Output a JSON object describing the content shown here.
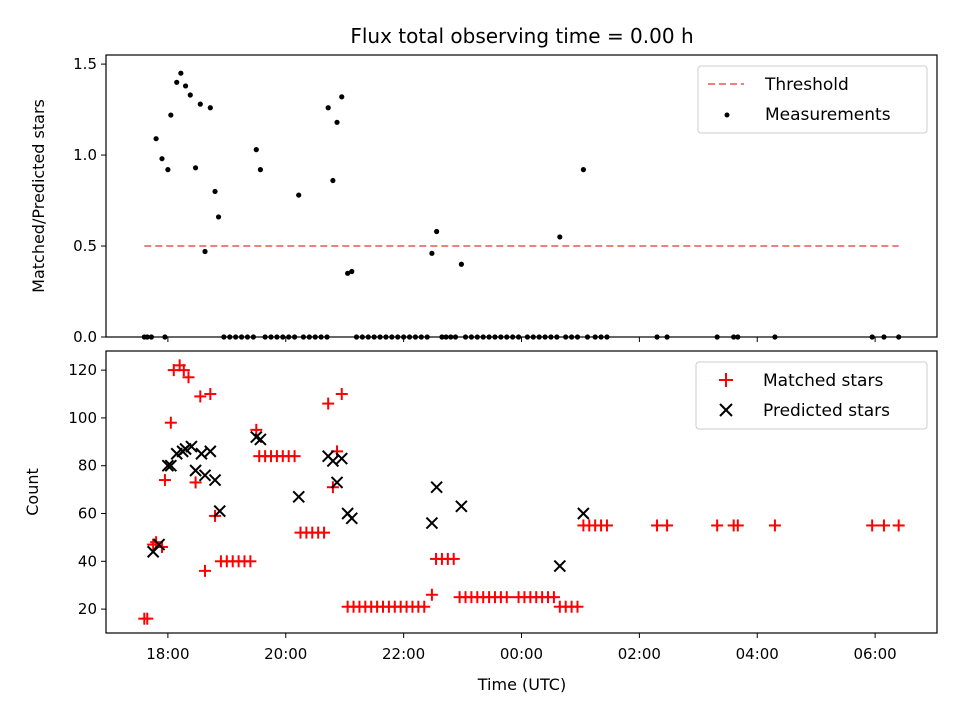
{
  "chart_data": [
    {
      "type": "scatter",
      "title": "Flux total observing time = 0.00 h",
      "xlabel": "",
      "ylabel": "Matched/Predicted stars",
      "ylim": [
        0,
        1.55
      ],
      "y_ticks": [
        "0.0",
        "0.5",
        "1.0",
        "1.5"
      ],
      "x_range_hours": [
        16.95,
        31.05
      ],
      "legend": {
        "placement": "top-right",
        "entries": [
          "Threshold",
          "Measurements"
        ]
      },
      "threshold": {
        "name": "Threshold",
        "value": 0.5,
        "x_start": 17.6,
        "x_end": 30.4,
        "color": "#f08080",
        "style": "dashed"
      },
      "series": [
        {
          "name": "Measurements",
          "color": "#000000",
          "points": [
            [
              17.6,
              0.0
            ],
            [
              17.65,
              0.0
            ],
            [
              17.72,
              0.0
            ],
            [
              17.95,
              0.0
            ],
            [
              17.8,
              1.09
            ],
            [
              17.9,
              0.98
            ],
            [
              18.0,
              0.92
            ],
            [
              18.05,
              1.22
            ],
            [
              18.15,
              1.4
            ],
            [
              18.22,
              1.45
            ],
            [
              18.3,
              1.38
            ],
            [
              18.38,
              1.33
            ],
            [
              18.47,
              0.93
            ],
            [
              18.55,
              1.28
            ],
            [
              18.63,
              0.47
            ],
            [
              18.72,
              1.26
            ],
            [
              18.8,
              0.8
            ],
            [
              18.86,
              0.66
            ],
            [
              18.95,
              0.0
            ],
            [
              19.05,
              0.0
            ],
            [
              19.15,
              0.0
            ],
            [
              19.25,
              0.0
            ],
            [
              19.35,
              0.0
            ],
            [
              19.45,
              0.0
            ],
            [
              19.5,
              1.03
            ],
            [
              19.57,
              0.92
            ],
            [
              19.65,
              0.0
            ],
            [
              19.75,
              0.0
            ],
            [
              19.85,
              0.0
            ],
            [
              19.95,
              0.0
            ],
            [
              20.05,
              0.0
            ],
            [
              20.15,
              0.0
            ],
            [
              20.22,
              0.78
            ],
            [
              20.3,
              0.0
            ],
            [
              20.4,
              0.0
            ],
            [
              20.5,
              0.0
            ],
            [
              20.6,
              0.0
            ],
            [
              20.7,
              0.0
            ],
            [
              20.72,
              1.26
            ],
            [
              20.8,
              0.86
            ],
            [
              20.87,
              1.18
            ],
            [
              20.95,
              1.32
            ],
            [
              21.05,
              0.35
            ],
            [
              21.12,
              0.36
            ],
            [
              21.2,
              0.0
            ],
            [
              21.3,
              0.0
            ],
            [
              21.4,
              0.0
            ],
            [
              21.5,
              0.0
            ],
            [
              21.6,
              0.0
            ],
            [
              21.7,
              0.0
            ],
            [
              21.8,
              0.0
            ],
            [
              21.9,
              0.0
            ],
            [
              22.0,
              0.0
            ],
            [
              22.1,
              0.0
            ],
            [
              22.2,
              0.0
            ],
            [
              22.3,
              0.0
            ],
            [
              22.4,
              0.0
            ],
            [
              22.48,
              0.46
            ],
            [
              22.56,
              0.58
            ],
            [
              22.65,
              0.0
            ],
            [
              22.72,
              0.0
            ],
            [
              22.8,
              0.0
            ],
            [
              22.88,
              0.0
            ],
            [
              22.98,
              0.4
            ],
            [
              23.05,
              0.0
            ],
            [
              23.15,
              0.0
            ],
            [
              23.25,
              0.0
            ],
            [
              23.35,
              0.0
            ],
            [
              23.45,
              0.0
            ],
            [
              23.55,
              0.0
            ],
            [
              23.65,
              0.0
            ],
            [
              23.75,
              0.0
            ],
            [
              23.85,
              0.0
            ],
            [
              23.95,
              0.0
            ],
            [
              24.1,
              0.0
            ],
            [
              24.2,
              0.0
            ],
            [
              24.3,
              0.0
            ],
            [
              24.4,
              0.0
            ],
            [
              24.5,
              0.0
            ],
            [
              24.6,
              0.0
            ],
            [
              24.65,
              0.55
            ],
            [
              24.75,
              0.0
            ],
            [
              24.85,
              0.0
            ],
            [
              24.95,
              0.0
            ],
            [
              25.05,
              0.92
            ],
            [
              25.12,
              0.0
            ],
            [
              25.25,
              0.0
            ],
            [
              25.35,
              0.0
            ],
            [
              25.45,
              0.0
            ],
            [
              26.3,
              0.0
            ],
            [
              26.47,
              0.0
            ],
            [
              27.32,
              0.0
            ],
            [
              27.6,
              0.0
            ],
            [
              27.67,
              0.0
            ],
            [
              28.3,
              0.0
            ],
            [
              29.95,
              0.0
            ],
            [
              30.15,
              0.0
            ],
            [
              30.4,
              0.0
            ]
          ]
        }
      ]
    },
    {
      "type": "scatter",
      "title": "",
      "xlabel": "Time (UTC)",
      "ylabel": "Count",
      "ylim": [
        10,
        128
      ],
      "y_ticks": [
        "20",
        "40",
        "60",
        "80",
        "100",
        "120"
      ],
      "x_range_hours": [
        16.95,
        31.05
      ],
      "x_ticks": [
        {
          "hour": 18,
          "label": "18:00"
        },
        {
          "hour": 20,
          "label": "20:00"
        },
        {
          "hour": 22,
          "label": "22:00"
        },
        {
          "hour": 24,
          "label": "00:00"
        },
        {
          "hour": 26,
          "label": "02:00"
        },
        {
          "hour": 28,
          "label": "04:00"
        },
        {
          "hour": 30,
          "label": "06:00"
        }
      ],
      "legend": {
        "placement": "top-right",
        "entries": [
          "Matched stars",
          "Predicted stars"
        ]
      },
      "series": [
        {
          "name": "Matched stars",
          "color": "#ff0000",
          "marker": "plus",
          "points": [
            [
              17.6,
              16
            ],
            [
              17.65,
              16
            ],
            [
              17.75,
              47
            ],
            [
              17.8,
              48
            ],
            [
              17.9,
              46
            ],
            [
              17.95,
              74
            ],
            [
              18.05,
              98
            ],
            [
              18.1,
              120
            ],
            [
              18.2,
              122
            ],
            [
              18.27,
              120
            ],
            [
              18.35,
              117
            ],
            [
              18.47,
              73
            ],
            [
              18.55,
              109
            ],
            [
              18.63,
              36
            ],
            [
              18.72,
              110
            ],
            [
              18.8,
              59
            ],
            [
              18.9,
              40
            ],
            [
              19.0,
              40
            ],
            [
              19.1,
              40
            ],
            [
              19.2,
              40
            ],
            [
              19.3,
              40
            ],
            [
              19.4,
              40
            ],
            [
              19.5,
              95
            ],
            [
              19.55,
              84
            ],
            [
              19.65,
              84
            ],
            [
              19.75,
              84
            ],
            [
              19.85,
              84
            ],
            [
              19.95,
              84
            ],
            [
              20.05,
              84
            ],
            [
              20.15,
              84
            ],
            [
              20.25,
              52
            ],
            [
              20.35,
              52
            ],
            [
              20.45,
              52
            ],
            [
              20.55,
              52
            ],
            [
              20.65,
              52
            ],
            [
              20.72,
              106
            ],
            [
              20.8,
              71
            ],
            [
              20.87,
              86
            ],
            [
              20.95,
              110
            ],
            [
              21.05,
              21
            ],
            [
              21.15,
              21
            ],
            [
              21.25,
              21
            ],
            [
              21.35,
              21
            ],
            [
              21.45,
              21
            ],
            [
              21.55,
              21
            ],
            [
              21.65,
              21
            ],
            [
              21.75,
              21
            ],
            [
              21.85,
              21
            ],
            [
              21.95,
              21
            ],
            [
              22.05,
              21
            ],
            [
              22.15,
              21
            ],
            [
              22.25,
              21
            ],
            [
              22.35,
              21
            ],
            [
              22.48,
              26
            ],
            [
              22.55,
              41
            ],
            [
              22.65,
              41
            ],
            [
              22.75,
              41
            ],
            [
              22.85,
              41
            ],
            [
              22.95,
              25
            ],
            [
              23.05,
              25
            ],
            [
              23.15,
              25
            ],
            [
              23.25,
              25
            ],
            [
              23.35,
              25
            ],
            [
              23.45,
              25
            ],
            [
              23.55,
              25
            ],
            [
              23.65,
              25
            ],
            [
              23.75,
              25
            ],
            [
              23.95,
              25
            ],
            [
              24.05,
              25
            ],
            [
              24.15,
              25
            ],
            [
              24.25,
              25
            ],
            [
              24.35,
              25
            ],
            [
              24.45,
              25
            ],
            [
              24.55,
              25
            ],
            [
              24.65,
              21
            ],
            [
              24.75,
              21
            ],
            [
              24.85,
              21
            ],
            [
              24.95,
              21
            ],
            [
              25.05,
              55
            ],
            [
              25.15,
              55
            ],
            [
              25.25,
              55
            ],
            [
              25.35,
              55
            ],
            [
              25.45,
              55
            ],
            [
              26.3,
              55
            ],
            [
              26.47,
              55
            ],
            [
              27.32,
              55
            ],
            [
              27.6,
              55
            ],
            [
              27.67,
              55
            ],
            [
              28.3,
              55
            ],
            [
              29.95,
              55
            ],
            [
              30.15,
              55
            ],
            [
              30.4,
              55
            ]
          ]
        },
        {
          "name": "Predicted stars",
          "color": "#000000",
          "marker": "x",
          "points": [
            [
              17.75,
              44
            ],
            [
              17.85,
              47
            ],
            [
              18.0,
              80
            ],
            [
              18.05,
              80
            ],
            [
              18.15,
              85
            ],
            [
              18.25,
              86
            ],
            [
              18.3,
              87
            ],
            [
              18.4,
              88
            ],
            [
              18.47,
              78
            ],
            [
              18.57,
              85
            ],
            [
              18.63,
              76
            ],
            [
              18.72,
              86
            ],
            [
              18.8,
              74
            ],
            [
              18.88,
              61
            ],
            [
              19.5,
              92
            ],
            [
              19.57,
              91
            ],
            [
              20.22,
              67
            ],
            [
              20.72,
              84
            ],
            [
              20.8,
              82
            ],
            [
              20.87,
              73
            ],
            [
              20.95,
              83
            ],
            [
              21.05,
              60
            ],
            [
              21.12,
              58
            ],
            [
              22.48,
              56
            ],
            [
              22.56,
              71
            ],
            [
              22.98,
              63
            ],
            [
              24.65,
              38
            ],
            [
              25.05,
              60
            ]
          ]
        }
      ]
    }
  ]
}
